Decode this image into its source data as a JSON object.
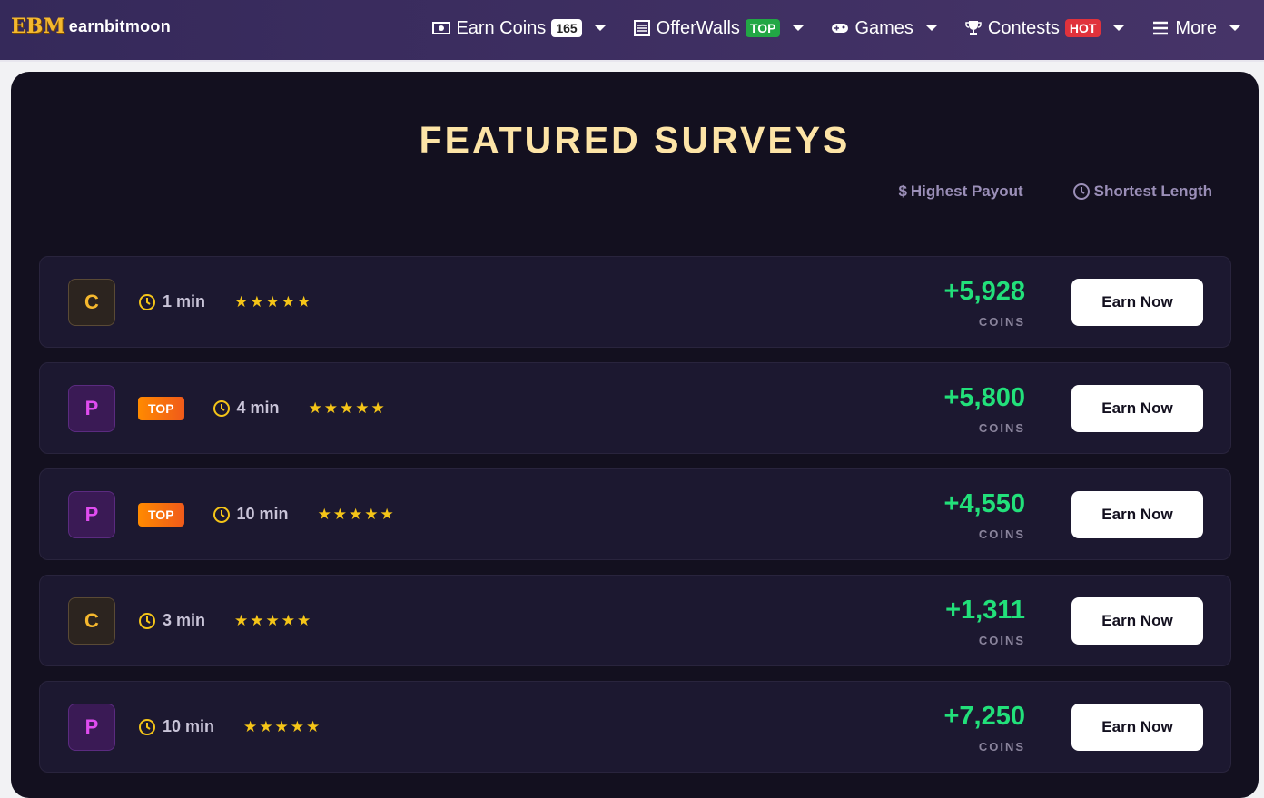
{
  "header": {
    "logo_mark": "EBM",
    "logo_text": "earnbitmoon",
    "nav": [
      {
        "label": "Earn Coins",
        "badge": "165"
      },
      {
        "label": "OfferWalls",
        "badge": "TOP"
      },
      {
        "label": "Games"
      },
      {
        "label": "Contests",
        "badge": "HOT"
      },
      {
        "label": "More"
      }
    ]
  },
  "section": {
    "title": "FEATURED SURVEYS",
    "sort": [
      {
        "icon": "$",
        "label": "Highest Payout"
      },
      {
        "label": "Shortest Length"
      }
    ],
    "rows": [
      {
        "provider": "C",
        "time": "1 min",
        "stars": "★★★★★",
        "amount": "+5,928",
        "unit": "COINS",
        "button": "Earn Now"
      },
      {
        "provider": "P",
        "badge": "TOP",
        "time": "4 min",
        "stars": "★★★★★",
        "amount": "+5,800",
        "unit": "COINS",
        "button": "Earn Now"
      },
      {
        "provider": "P",
        "badge": "TOP",
        "time": "10 min",
        "stars": "★★★★★",
        "amount": "+4,550",
        "unit": "COINS",
        "button": "Earn Now"
      },
      {
        "provider": "C",
        "time": "3 min",
        "stars": "★★★★★",
        "amount": "+1,311",
        "unit": "COINS",
        "button": "Earn Now"
      },
      {
        "provider": "P",
        "time": "10 min",
        "stars": "★★★★★",
        "amount": "+7,250",
        "unit": "COINS",
        "button": "Earn Now"
      }
    ]
  }
}
